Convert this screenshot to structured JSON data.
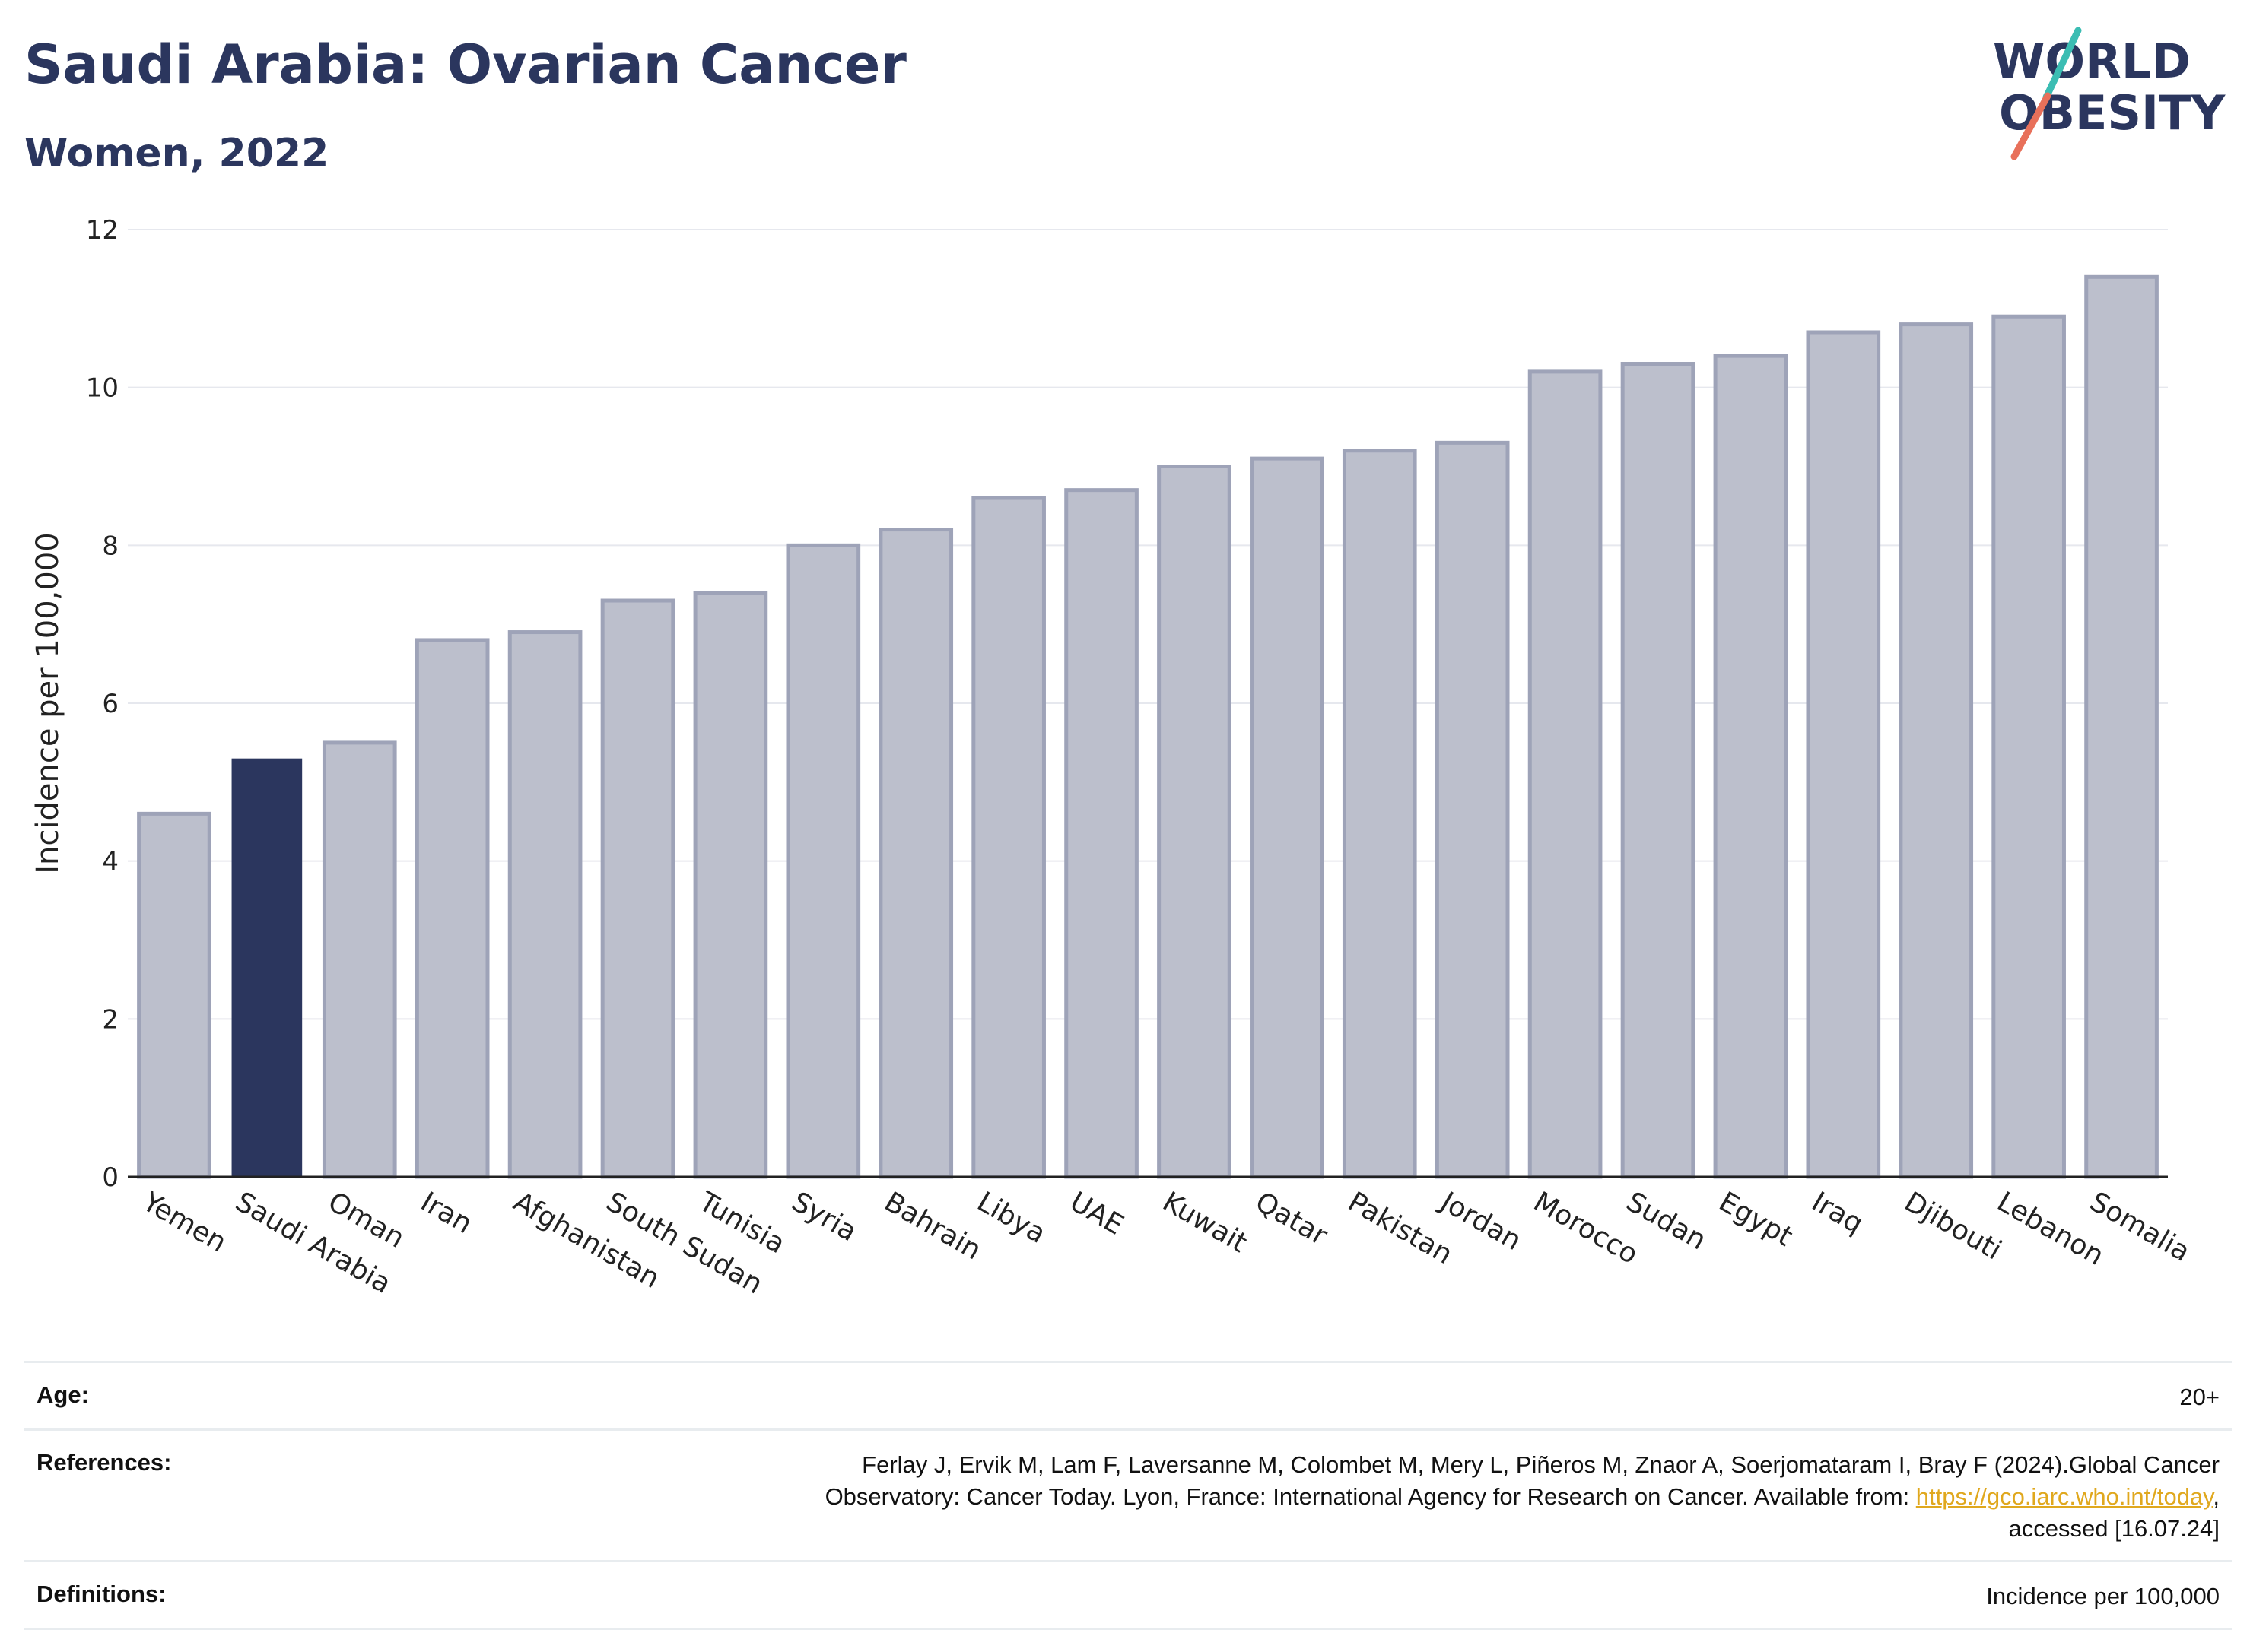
{
  "header": {
    "title": "Saudi Arabia: Ovarian Cancer",
    "subtitle": "Women, 2022"
  },
  "logo": {
    "line1": "WORLD",
    "line2": "OBESITY",
    "colors": {
      "text": "#2b365e",
      "slash_top": "#3bbdb3",
      "slash_bottom": "#e8705a"
    }
  },
  "colors": {
    "highlight": "#2b365e",
    "bar_fill": "#bcbfcc",
    "bar_stroke": "#9ea3b8",
    "grid": "#e6e8ee",
    "axis": "#222222",
    "link": "#e0a81e"
  },
  "chart_data": {
    "type": "bar",
    "title": "Saudi Arabia: Ovarian Cancer",
    "subtitle": "Women, 2022",
    "xlabel": "",
    "ylabel": "Incidence per 100,000",
    "ylim": [
      0,
      12
    ],
    "yticks": [
      0,
      2,
      4,
      6,
      8,
      10,
      12
    ],
    "grid": true,
    "highlight_category": "Saudi Arabia",
    "categories": [
      "Yemen",
      "Saudi Arabia",
      "Oman",
      "Iran",
      "Afghanistan",
      "South Sudan",
      "Tunisia",
      "Syria",
      "Bahrain",
      "Libya",
      "UAE",
      "Kuwait",
      "Qatar",
      "Pakistan",
      "Jordan",
      "Morocco",
      "Sudan",
      "Egypt",
      "Iraq",
      "Djibouti",
      "Lebanon",
      "Somalia"
    ],
    "values": [
      4.6,
      5.3,
      5.5,
      6.8,
      6.9,
      7.3,
      7.4,
      8.0,
      8.2,
      8.6,
      8.7,
      9.0,
      9.1,
      9.2,
      9.3,
      10.2,
      10.3,
      10.4,
      10.7,
      10.8,
      10.9,
      11.4
    ]
  },
  "footer": {
    "age_label": "Age:",
    "age_value": "20+",
    "references_label": "References:",
    "references_line1": "Ferlay J, Ervik M, Lam F, Laversanne M, Colombet M, Mery L, Piñeros M, Znaor A, Soerjomataram I, Bray F (2024).Global Cancer",
    "references_line2": "Observatory: Cancer Today. Lyon, France: International Agency for Research on Cancer. Available from: ",
    "references_link": "https://gco.iarc.who.int/today",
    "references_line2_end": ",",
    "references_line3": "accessed [16.07.24]",
    "definitions_label": "Definitions:",
    "definitions_value": "Incidence per 100,000"
  }
}
